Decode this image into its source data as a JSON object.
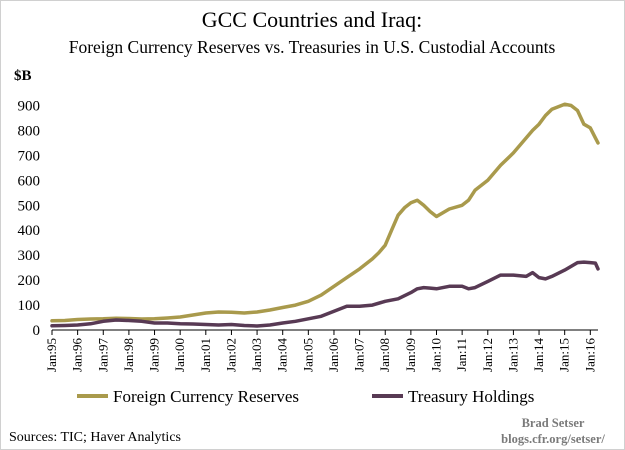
{
  "chart_data": {
    "type": "line",
    "title": "GCC Countries and Iraq:",
    "subtitle": "Foreign Currency Reserves vs. Treasuries in U.S. Custodial Accounts",
    "ylabel": "$B",
    "ylim": [
      0,
      950
    ],
    "yticks": [
      0,
      100,
      200,
      300,
      400,
      500,
      600,
      700,
      800,
      900
    ],
    "xlim": [
      1995.0,
      2016.3
    ],
    "x_tick_labels": [
      "Jan:95",
      "Jan:96",
      "Jan:97",
      "Jan:98",
      "Jan:99",
      "Jan:00",
      "Jan:01",
      "Jan:02",
      "Jan:03",
      "Jan:04",
      "Jan:05",
      "Jan:06",
      "Jan:07",
      "Jan:08",
      "Jan:09",
      "Jan:10",
      "Jan:11",
      "Jan:12",
      "Jan:13",
      "Jan:14",
      "Jan:15",
      "Jan:16"
    ],
    "x_tick_values": [
      1995,
      1996,
      1997,
      1998,
      1999,
      2000,
      2001,
      2002,
      2003,
      2004,
      2005,
      2006,
      2007,
      2008,
      2009,
      2010,
      2011,
      2012,
      2013,
      2014,
      2015,
      2016
    ],
    "grid": false,
    "legend_position": "bottom",
    "series": [
      {
        "name": "Foreign Currency Reserves",
        "color": "#a99a4c",
        "points": [
          [
            1995.0,
            37
          ],
          [
            1995.5,
            38
          ],
          [
            1996.0,
            42
          ],
          [
            1996.5,
            44
          ],
          [
            1997.0,
            45
          ],
          [
            1997.5,
            47
          ],
          [
            1998.0,
            46
          ],
          [
            1998.5,
            44
          ],
          [
            1999.0,
            45
          ],
          [
            1999.5,
            48
          ],
          [
            2000.0,
            52
          ],
          [
            2000.5,
            60
          ],
          [
            2001.0,
            68
          ],
          [
            2001.5,
            72
          ],
          [
            2002.0,
            71
          ],
          [
            2002.5,
            68
          ],
          [
            2003.0,
            72
          ],
          [
            2003.5,
            80
          ],
          [
            2004.0,
            90
          ],
          [
            2004.5,
            100
          ],
          [
            2005.0,
            115
          ],
          [
            2005.5,
            140
          ],
          [
            2006.0,
            175
          ],
          [
            2006.5,
            210
          ],
          [
            2007.0,
            245
          ],
          [
            2007.5,
            285
          ],
          [
            2007.75,
            310
          ],
          [
            2008.0,
            340
          ],
          [
            2008.25,
            400
          ],
          [
            2008.5,
            460
          ],
          [
            2008.75,
            490
          ],
          [
            2009.0,
            510
          ],
          [
            2009.25,
            520
          ],
          [
            2009.5,
            500
          ],
          [
            2009.75,
            475
          ],
          [
            2010.0,
            455
          ],
          [
            2010.25,
            470
          ],
          [
            2010.5,
            485
          ],
          [
            2011.0,
            500
          ],
          [
            2011.25,
            520
          ],
          [
            2011.5,
            560
          ],
          [
            2012.0,
            600
          ],
          [
            2012.5,
            660
          ],
          [
            2013.0,
            710
          ],
          [
            2013.5,
            770
          ],
          [
            2013.75,
            800
          ],
          [
            2014.0,
            825
          ],
          [
            2014.25,
            860
          ],
          [
            2014.5,
            885
          ],
          [
            2014.75,
            895
          ],
          [
            2015.0,
            905
          ],
          [
            2015.25,
            900
          ],
          [
            2015.5,
            880
          ],
          [
            2015.75,
            825
          ],
          [
            2016.0,
            810
          ],
          [
            2016.2,
            770
          ],
          [
            2016.3,
            750
          ]
        ]
      },
      {
        "name": "Treasury Holdings",
        "color": "#583a54",
        "points": [
          [
            1995.0,
            17
          ],
          [
            1995.5,
            18
          ],
          [
            1996.0,
            20
          ],
          [
            1996.5,
            25
          ],
          [
            1997.0,
            35
          ],
          [
            1997.5,
            40
          ],
          [
            1998.0,
            38
          ],
          [
            1998.5,
            35
          ],
          [
            1999.0,
            28
          ],
          [
            1999.5,
            28
          ],
          [
            2000.0,
            25
          ],
          [
            2000.5,
            24
          ],
          [
            2001.0,
            22
          ],
          [
            2001.5,
            20
          ],
          [
            2002.0,
            22
          ],
          [
            2002.5,
            18
          ],
          [
            2003.0,
            16
          ],
          [
            2003.5,
            20
          ],
          [
            2004.0,
            28
          ],
          [
            2004.5,
            35
          ],
          [
            2005.0,
            45
          ],
          [
            2005.5,
            55
          ],
          [
            2006.0,
            75
          ],
          [
            2006.5,
            95
          ],
          [
            2007.0,
            95
          ],
          [
            2007.5,
            100
          ],
          [
            2008.0,
            115
          ],
          [
            2008.5,
            125
          ],
          [
            2009.0,
            150
          ],
          [
            2009.25,
            165
          ],
          [
            2009.5,
            170
          ],
          [
            2009.75,
            168
          ],
          [
            2010.0,
            165
          ],
          [
            2010.5,
            175
          ],
          [
            2011.0,
            175
          ],
          [
            2011.25,
            165
          ],
          [
            2011.5,
            170
          ],
          [
            2012.0,
            195
          ],
          [
            2012.5,
            220
          ],
          [
            2013.0,
            220
          ],
          [
            2013.5,
            215
          ],
          [
            2013.75,
            230
          ],
          [
            2014.0,
            210
          ],
          [
            2014.25,
            205
          ],
          [
            2014.5,
            215
          ],
          [
            2015.0,
            240
          ],
          [
            2015.5,
            270
          ],
          [
            2015.75,
            272
          ],
          [
            2016.0,
            270
          ],
          [
            2016.2,
            268
          ],
          [
            2016.3,
            245
          ]
        ]
      }
    ]
  },
  "sources": "Sources: TIC; Haver Analytics",
  "credit": {
    "author": "Brad Setser",
    "site": "blogs.cfr.org/setser/"
  }
}
